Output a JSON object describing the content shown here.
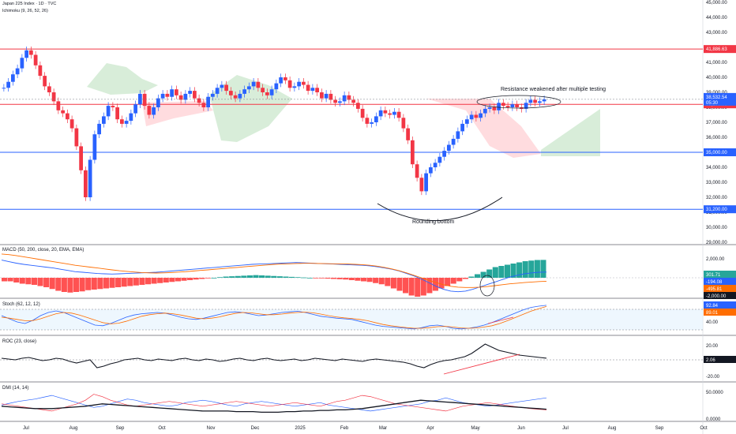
{
  "header": {
    "symbol": "Japan 225 Index · 1D · TVC",
    "indicator": "Ichimoku (9, 26, 52, 26)"
  },
  "chart_data": {
    "type": "candlestick",
    "main_axis": {
      "ticks": [
        "45,000.00",
        "44,000.00",
        "43,000.00",
        "42,000.00",
        "41,000.00",
        "40,000.00",
        "39,000.00",
        "38,000.00",
        "37,000.00",
        "36,000.00",
        "35,000.00",
        "34,000.00",
        "33,000.00",
        "32,000.00",
        "31,000.00",
        "30,000.00",
        "29,000.00"
      ],
      "ylim": [
        29000,
        45000
      ]
    },
    "x_labels": [
      "Jul",
      "Aug",
      "Sep",
      "Oct",
      "Nov",
      "Dec",
      "2025",
      "Feb",
      "Mar",
      "Apr",
      "May",
      "Jun",
      "Jul",
      "Aug",
      "Sep",
      "Oct"
    ],
    "horizontal_levels": [
      {
        "value": 41886.63,
        "label": "41,886.63",
        "color": "#f23645"
      },
      {
        "value": 38200,
        "label": "38,200.00",
        "color": "#f23645"
      },
      {
        "value": 35000,
        "label": "35,000.00",
        "color": "#2962ff"
      },
      {
        "value": 31200,
        "label": "31,200.00",
        "color": "#2962ff"
      }
    ],
    "last_price": {
      "value": 38532.54,
      "label": "38,532.54",
      "countdown": "05:30",
      "color": "#2962ff"
    },
    "annotations": [
      "Resistance weakened after multiple testing",
      "Rounding bottom"
    ],
    "price_series": [
      39300,
      39700,
      40200,
      40600,
      41300,
      41800,
      41500,
      40800,
      40100,
      39400,
      39000,
      38400,
      37800,
      37600,
      37200,
      36600,
      35400,
      33800,
      32000,
      34500,
      36200,
      36900,
      37400,
      38100,
      38000,
      37200,
      36900,
      37100,
      37600,
      38200,
      38900,
      38100,
      37500,
      38000,
      38600,
      38900,
      38700,
      39200,
      38800,
      38500,
      38900,
      39100,
      38600,
      38300,
      38000,
      38700,
      38900,
      39300,
      39500,
      39100,
      38800,
      38600,
      38900,
      39200,
      39400,
      39700,
      39300,
      39000,
      38800,
      39200,
      39600,
      40000,
      39800,
      39300,
      39400,
      39700,
      39500,
      39100,
      39300,
      39000,
      38600,
      38900,
      38500,
      38300,
      38400,
      38800,
      38500,
      38300,
      37900,
      37300,
      36900,
      37000,
      37400,
      37800,
      37600,
      37500,
      37700,
      37300,
      36600,
      35800,
      34200,
      33300,
      32400,
      33600,
      34000,
      34300,
      34700,
      35100,
      35500,
      35900,
      36400,
      36900,
      37200,
      37500,
      37300,
      37600,
      37900,
      38000,
      37800,
      38300,
      38100,
      38000,
      38200,
      38000,
      37900,
      38300,
      38500,
      38300,
      38400,
      38532.54
    ],
    "macd": {
      "title": "MACD (50, 200, close, 20, EMA, EMA)",
      "ticks": [
        "2,000.00"
      ],
      "values": [
        {
          "label": "301.71",
          "color": "#26a69a"
        },
        {
          "label": "-194.08",
          "color": "#2962ff"
        },
        {
          "label": "-495.81",
          "color": "#ff6d00"
        },
        {
          "label": "-2,000.00",
          "color": "#131722"
        }
      ],
      "histogram": [
        -60,
        -60,
        -80,
        -100,
        -110,
        -120,
        -140,
        -160,
        -190,
        -220,
        -240,
        -250,
        -240,
        -230,
        -210,
        -200,
        -190,
        -180,
        -170,
        -160,
        -150,
        -140,
        -130,
        -120,
        -110,
        -100,
        -90,
        -80,
        -70,
        -60,
        -50,
        -40,
        -30,
        -20,
        -10,
        0,
        10,
        20,
        25,
        30,
        35,
        40,
        45,
        40,
        35,
        30,
        25,
        20,
        15,
        10,
        5,
        0,
        -5,
        -10,
        -15,
        -20,
        -25,
        -30,
        -40,
        -50,
        -60,
        -70,
        -90,
        -110,
        -140,
        -180,
        -220,
        -260,
        -300,
        -320,
        -300,
        -260,
        -220,
        -180,
        -140,
        -100,
        -60,
        -20,
        20,
        60,
        100,
        140,
        180,
        200,
        220,
        240,
        260,
        280,
        290,
        300,
        301.71
      ],
      "macd_line": [
        200,
        150,
        100,
        60,
        30,
        0,
        -30,
        -60,
        -100,
        -140,
        -180,
        -200,
        -220,
        -240,
        -250,
        -260,
        -250,
        -240,
        -230,
        -220,
        -210,
        -200,
        -180,
        -160,
        -140,
        -120,
        -100,
        -80,
        -60,
        -40,
        -20,
        0,
        20,
        40,
        60,
        70,
        80,
        90,
        100,
        110,
        120,
        110,
        100,
        90,
        80,
        70,
        60,
        50,
        40,
        30,
        10,
        -20,
        -60,
        -100,
        -160,
        -240,
        -320,
        -420,
        -540,
        -660,
        -760,
        -820,
        -840,
        -820,
        -760,
        -680,
        -600,
        -520,
        -440,
        -360,
        -300,
        -250,
        -220,
        -200,
        -194.08
      ],
      "signal_line": [
        400,
        380,
        350,
        310,
        270,
        230,
        190,
        150,
        110,
        70,
        30,
        0,
        -30,
        -60,
        -90,
        -120,
        -150,
        -170,
        -190,
        -210,
        -220,
        -225,
        -220,
        -210,
        -195,
        -180,
        -160,
        -140,
        -120,
        -100,
        -80,
        -60,
        -40,
        -20,
        0,
        20,
        40,
        60,
        70,
        80,
        90,
        95,
        95,
        90,
        85,
        80,
        75,
        70,
        60,
        50,
        30,
        0,
        -40,
        -90,
        -150,
        -220,
        -300,
        -380,
        -460,
        -540,
        -610,
        -660,
        -690,
        -700,
        -700,
        -690,
        -670,
        -640,
        -610,
        -580,
        -560,
        -540,
        -520,
        -505,
        -495.81
      ]
    },
    "stoch": {
      "title": "Stoch (62, 12, 12)",
      "ticks": [
        "40.00"
      ],
      "values": [
        {
          "label": "92.84",
          "color": "#2962ff"
        },
        {
          "label": "89.01",
          "color": "#ff6d00"
        }
      ],
      "k": [
        60,
        50,
        40,
        35,
        45,
        60,
        70,
        75,
        70,
        60,
        50,
        40,
        30,
        28,
        35,
        45,
        55,
        62,
        66,
        68,
        70,
        68,
        62,
        55,
        50,
        48,
        52,
        58,
        64,
        70,
        72,
        70,
        65,
        60,
        62,
        66,
        70,
        72,
        74,
        70,
        64,
        58,
        55,
        52,
        50,
        48,
        42,
        36,
        30,
        26,
        24,
        22,
        20,
        18,
        22,
        28,
        30,
        26,
        20,
        18,
        20,
        24,
        30,
        38,
        48,
        58,
        68,
        78,
        86,
        90,
        92.84
      ],
      "d": [
        55,
        52,
        48,
        44,
        44,
        50,
        58,
        66,
        70,
        68,
        62,
        54,
        46,
        38,
        34,
        36,
        42,
        50,
        58,
        63,
        66,
        68,
        66,
        62,
        57,
        52,
        50,
        52,
        56,
        62,
        67,
        70,
        69,
        66,
        63,
        63,
        65,
        68,
        70,
        71,
        69,
        65,
        60,
        56,
        53,
        51,
        48,
        44,
        38,
        32,
        28,
        25,
        22,
        20,
        20,
        22,
        25,
        26,
        24,
        21,
        20,
        21,
        24,
        28,
        35,
        44,
        54,
        64,
        74,
        82,
        89.01
      ]
    },
    "roc": {
      "title": "ROC (23, close)",
      "ticks": [
        "20.00",
        "-20.00"
      ],
      "values": [
        {
          "label": "2.06",
          "color": "#131722"
        }
      ],
      "series": [
        2,
        1,
        0,
        2,
        3,
        1,
        -1,
        0,
        2,
        1,
        -2,
        -4,
        -2,
        0,
        -10,
        -8,
        -5,
        -3,
        0,
        1,
        2,
        0,
        -1,
        1,
        0,
        -1,
        1,
        2,
        0,
        -1,
        1,
        0,
        -2,
        -1,
        1,
        2,
        0,
        -1,
        1,
        2,
        0,
        -1,
        0,
        1,
        -1,
        0,
        2,
        1,
        0,
        -1,
        1,
        0,
        -1,
        -2,
        0,
        1,
        0,
        -1,
        -2,
        -3,
        -5,
        -8,
        -10,
        -6,
        -3,
        -1,
        0,
        2,
        4,
        8,
        14,
        20,
        16,
        12,
        10,
        8,
        6,
        5,
        4,
        3,
        2.06
      ]
    },
    "dmi": {
      "title": "DMI (14, 14)",
      "ticks": [
        "50.0000",
        "0.0000"
      ],
      "plus_di": [
        22,
        25,
        28,
        30,
        32,
        35,
        38,
        34,
        30,
        26,
        22,
        18,
        20,
        24,
        28,
        32,
        30,
        26,
        24,
        22,
        20,
        22,
        26,
        28,
        30,
        28,
        25,
        22,
        20,
        24,
        26,
        28,
        26,
        24,
        22,
        20,
        22,
        24,
        26,
        22,
        20,
        18,
        16,
        14,
        12,
        14,
        16,
        18,
        20,
        22,
        24,
        28,
        30,
        34,
        30,
        26,
        24,
        22,
        20,
        22,
        24,
        26,
        28,
        30,
        32,
        34
      ],
      "minus_di": [
        24,
        22,
        20,
        18,
        16,
        14,
        12,
        16,
        20,
        24,
        30,
        40,
        36,
        30,
        26,
        22,
        20,
        22,
        24,
        26,
        28,
        26,
        24,
        22,
        20,
        22,
        24,
        26,
        28,
        26,
        24,
        22,
        20,
        22,
        24,
        26,
        24,
        22,
        20,
        24,
        28,
        30,
        34,
        38,
        36,
        32,
        28,
        24,
        22,
        20,
        18,
        16,
        14,
        12,
        16,
        20,
        22,
        24,
        26,
        24,
        22,
        20,
        18,
        16,
        15,
        14
      ],
      "adx": [
        20,
        19,
        18,
        17,
        16,
        16,
        16,
        17,
        18,
        19,
        20,
        22,
        24,
        23,
        22,
        21,
        20,
        19,
        18,
        17,
        16,
        15,
        14,
        13,
        12,
        12,
        12,
        12,
        11,
        11,
        11,
        10,
        10,
        10,
        11,
        11,
        12,
        12,
        13,
        13,
        14,
        14,
        15,
        16,
        18,
        20,
        22,
        24,
        26,
        28,
        30,
        29,
        28,
        27,
        26,
        25,
        24,
        23,
        22,
        21,
        20,
        19,
        18,
        17,
        16,
        15
      ]
    }
  }
}
